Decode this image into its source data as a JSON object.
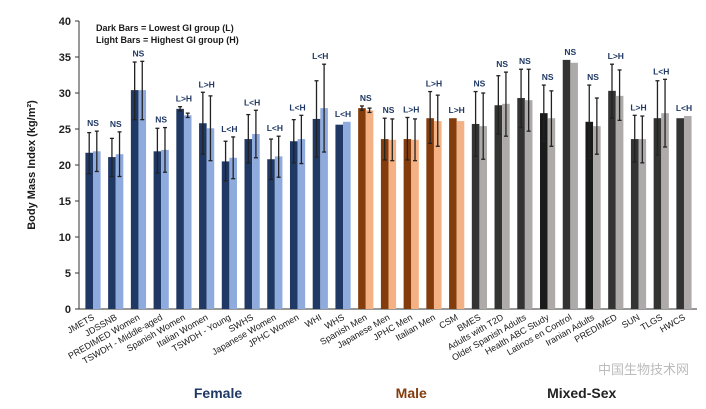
{
  "chart_data": {
    "type": "bar",
    "title": "",
    "xlabel": "",
    "ylabel": "Body Mass Index (kg/m²)",
    "ylim": [
      0,
      40
    ],
    "yticks": [
      0,
      5,
      10,
      15,
      20,
      25,
      30,
      35,
      40
    ],
    "grid": false,
    "legend": {
      "placement": "top-left",
      "lines": [
        "Dark Bars = Lowest GI group (L)",
        "Light Bars = Highest GI group (H)"
      ]
    },
    "groups": [
      {
        "name": "Female",
        "color": "#1f3864",
        "dark": "#1f3864",
        "light": "#8faadc"
      },
      {
        "name": "Male",
        "color": "#843c0c",
        "dark": "#843c0c",
        "light": "#f4b183"
      },
      {
        "name": "Mixed-Sex",
        "color": "#222222",
        "dark": "#333333",
        "light": "#aeaaaa"
      }
    ],
    "series": [
      {
        "name": "L",
        "description": "Dark Bars"
      },
      {
        "name": "H",
        "description": "Light Bars"
      }
    ],
    "studies": [
      {
        "label": "JMETS",
        "group": "Female",
        "sig": "NS",
        "L": 21.7,
        "L_err": [
          18.8,
          24.5
        ],
        "H": 21.9,
        "H_err": [
          19.1,
          24.7
        ]
      },
      {
        "label": "JDSSNB",
        "group": "Female",
        "sig": "NS",
        "L": 21.1,
        "L_err": [
          18.4,
          23.7
        ],
        "H": 21.5,
        "H_err": [
          18.4,
          24.6
        ]
      },
      {
        "label": "PREDIMED Women",
        "group": "Female",
        "sig": "NS",
        "L": 30.4,
        "L_err": [
          26.3,
          34.3
        ],
        "H": 30.4,
        "H_err": [
          26.3,
          34.4
        ]
      },
      {
        "label": "TSWDH - Middle-aged",
        "group": "Female",
        "sig": "NS",
        "L": 21.9,
        "L_err": [
          18.9,
          25.1
        ],
        "H": 22.1,
        "H_err": [
          19.0,
          25.2
        ]
      },
      {
        "label": "Spanish Women",
        "group": "Female",
        "sig": "L>H",
        "L": 27.8,
        "L_err": [
          27.5,
          28.1
        ],
        "H": 26.9,
        "H_err": [
          26.6,
          27.2
        ]
      },
      {
        "label": "Italian Women",
        "group": "Female",
        "sig": "L>H",
        "L": 25.8,
        "L_err": [
          21.5,
          30.1
        ],
        "H": 25.1,
        "H_err": [
          20.6,
          29.6
        ]
      },
      {
        "label": "TSWDH - Young",
        "group": "Female",
        "sig": "L<H",
        "L": 20.5,
        "L_err": [
          17.8,
          23.3
        ],
        "H": 21.0,
        "H_err": [
          18.1,
          23.9
        ]
      },
      {
        "label": "SWHS",
        "group": "Female",
        "sig": "L<H",
        "L": 23.6,
        "L_err": [
          20.3,
          27.0
        ],
        "H": 24.3,
        "H_err": [
          21.0,
          27.6
        ]
      },
      {
        "label": "Japanese Women",
        "group": "Female",
        "sig": "L<H",
        "L": 20.8,
        "L_err": [
          18.0,
          23.6
        ],
        "H": 21.2,
        "H_err": [
          18.3,
          24.0
        ]
      },
      {
        "label": "JPHC Women",
        "group": "Female",
        "sig": "L<H",
        "L": 23.3,
        "L_err": [
          20.3,
          26.3
        ],
        "H": 23.6,
        "H_err": [
          20.2,
          26.9
        ]
      },
      {
        "label": "WHI",
        "group": "Female",
        "sig": "L<H",
        "L": 26.4,
        "L_err": [
          21.1,
          31.7
        ],
        "H": 27.9,
        "H_err": [
          21.8,
          34.0
        ]
      },
      {
        "label": "WHS",
        "group": "Female",
        "sig": "L<H",
        "L": 25.6,
        "L_err": null,
        "H": 26.0,
        "H_err": null
      },
      {
        "label": "Spanish Men",
        "group": "Male",
        "sig": "NS",
        "L": 27.9,
        "L_err": [
          27.6,
          28.2
        ],
        "H": 27.6,
        "H_err": [
          27.3,
          27.9
        ]
      },
      {
        "label": "Japanese Men",
        "group": "Male",
        "sig": "NS",
        "L": 23.6,
        "L_err": [
          20.7,
          26.5
        ],
        "H": 23.5,
        "H_err": [
          20.6,
          26.4
        ]
      },
      {
        "label": "JPHC Men",
        "group": "Male",
        "sig": "L>H",
        "L": 23.6,
        "L_err": [
          20.7,
          26.6
        ],
        "H": 23.5,
        "H_err": [
          20.6,
          26.4
        ]
      },
      {
        "label": "Italian Men",
        "group": "Male",
        "sig": "L>H",
        "L": 26.5,
        "L_err": [
          23.0,
          30.2
        ],
        "H": 26.1,
        "H_err": [
          22.6,
          29.7
        ]
      },
      {
        "label": "CSM",
        "group": "Male",
        "sig": "L>H",
        "L": 26.5,
        "L_err": null,
        "H": 26.1,
        "H_err": null
      },
      {
        "label": "BMES",
        "group": "Mixed-Sex",
        "sig": "NS",
        "L": 25.7,
        "L_err": [
          21.2,
          30.2
        ],
        "H": 25.4,
        "H_err": [
          20.8,
          30.0
        ]
      },
      {
        "label": "Adults with T2D",
        "group": "Mixed-Sex",
        "sig": "NS",
        "L": 28.3,
        "L_err": [
          24.3,
          32.4
        ],
        "H": 28.5,
        "H_err": [
          24.0,
          32.9
        ]
      },
      {
        "label": "Older Spanish Adults",
        "group": "Mixed-Sex",
        "sig": "NS",
        "L": 29.3,
        "L_err": [
          25.2,
          33.3
        ],
        "H": 29.0,
        "H_err": [
          24.7,
          33.3
        ]
      },
      {
        "label": "Health ABC Study",
        "group": "Mixed-Sex",
        "sig": "NS",
        "L": 27.2,
        "L_err": [
          23.3,
          31.1
        ],
        "H": 26.5,
        "H_err": [
          22.6,
          30.3
        ]
      },
      {
        "label": "Latinos en Control",
        "group": "Mixed-Sex",
        "sig": "NS",
        "L": 34.6,
        "L_err": null,
        "H": 34.2,
        "H_err": null
      },
      {
        "label": "Iranian Adults",
        "group": "Mixed-Sex",
        "sig": "NS",
        "L": 26.0,
        "L_err": [
          20.9,
          31.1
        ],
        "H": 25.4,
        "H_err": [
          21.5,
          29.3
        ]
      },
      {
        "label": "PREDIMED",
        "group": "Mixed-Sex",
        "sig": "L>H",
        "L": 30.3,
        "L_err": [
          26.5,
          34.0
        ],
        "H": 29.6,
        "H_err": [
          26.2,
          33.2
        ]
      },
      {
        "label": "SUN",
        "group": "Mixed-Sex",
        "sig": "L>H",
        "L": 23.6,
        "L_err": [
          20.4,
          26.9
        ],
        "H": 23.6,
        "H_err": [
          20.3,
          26.8
        ]
      },
      {
        "label": "TLGS",
        "group": "Mixed-Sex",
        "sig": "L<H",
        "L": 26.5,
        "L_err": [
          21.4,
          31.7
        ],
        "H": 27.2,
        "H_err": [
          22.5,
          31.9
        ]
      },
      {
        "label": "HWCS",
        "group": "Mixed-Sex",
        "sig": "L<H",
        "L": 26.5,
        "L_err": null,
        "H": 26.8,
        "H_err": null
      }
    ]
  },
  "watermark": "中国生物技术网"
}
